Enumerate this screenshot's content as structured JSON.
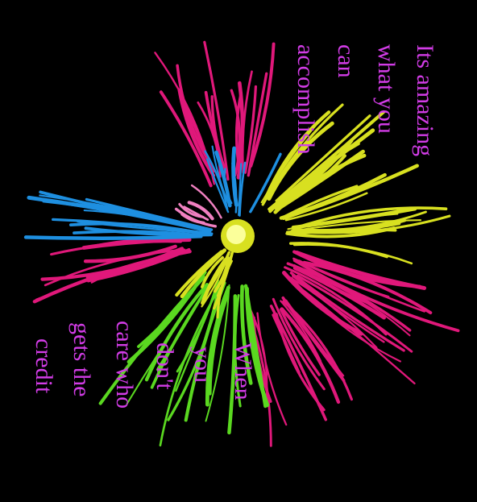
{
  "top_quote": {
    "lines": [
      "Its amazing",
      "what you",
      "can",
      "accomplish"
    ]
  },
  "bottom_quote": {
    "lines": [
      "When",
      "you",
      "don't",
      "care who",
      "gets the",
      "credit"
    ]
  }
}
